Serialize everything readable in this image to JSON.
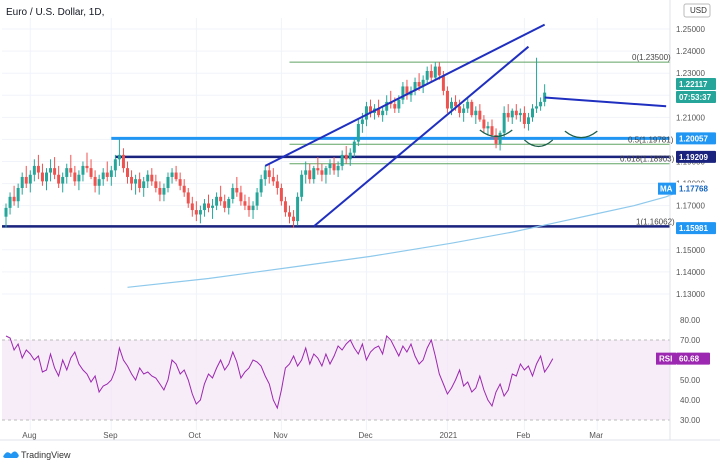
{
  "title": "Euro / U.S. Dollar, 1D,",
  "currency": "USD",
  "branding": "TradingView",
  "colors": {
    "up": "#26a69a",
    "down": "#ef5350",
    "ma": "#8ec9ec",
    "rsi": "#9c27b0",
    "trend": "#1f2fbf",
    "support_light": "#2196f3",
    "support_dark": "#1a237e",
    "fib": "#388e3c",
    "neckline": "#1a3a8f"
  },
  "price_axis": {
    "ticks": [
      "1.25000",
      "1.24000",
      "1.23000",
      "1.22000",
      "1.21000",
      "1.20000",
      "1.19000",
      "1.18000",
      "1.17000",
      "1.16000",
      "1.15000",
      "1.14000",
      "1.13000"
    ]
  },
  "rsi_axis": {
    "ticks": [
      "80.00",
      "70.00",
      "60.00",
      "50.00",
      "40.00",
      "30.00"
    ]
  },
  "months": [
    "Aug",
    "Sep",
    "Oct",
    "Nov",
    "Dec",
    "2021",
    "Feb",
    "Mar"
  ],
  "badges": {
    "last_price": "1.22117",
    "countdown": "07:53:37",
    "level1": "1.20057",
    "level2": "1.19209",
    "ma_label": "MA",
    "ma_value": "1.17768",
    "level3": "1.15981",
    "rsi_label": "RSI",
    "rsi_value": "60.68"
  },
  "fib_labels": {
    "f0": "0(1.23500)",
    "f05": "0.5(1.19781)",
    "f618": "0.618(1.18903)",
    "f1": "1(1.16062)"
  },
  "chart_data": {
    "type": "candlestick",
    "title": "Euro / U.S. Dollar, 1D,",
    "ylim": [
      1.125,
      1.255
    ],
    "candles": [
      [
        1.165,
        1.171,
        1.16,
        1.169
      ],
      [
        1.169,
        1.176,
        1.166,
        1.174
      ],
      [
        1.174,
        1.179,
        1.17,
        1.172
      ],
      [
        1.172,
        1.18,
        1.169,
        1.178
      ],
      [
        1.178,
        1.185,
        1.175,
        1.183
      ],
      [
        1.183,
        1.188,
        1.178,
        1.18
      ],
      [
        1.18,
        1.186,
        1.176,
        1.184
      ],
      [
        1.184,
        1.191,
        1.181,
        1.188
      ],
      [
        1.188,
        1.193,
        1.182,
        1.185
      ],
      [
        1.185,
        1.189,
        1.179,
        1.181
      ],
      [
        1.181,
        1.187,
        1.177,
        1.185
      ],
      [
        1.185,
        1.191,
        1.181,
        1.187
      ],
      [
        1.187,
        1.192,
        1.182,
        1.184
      ],
      [
        1.184,
        1.188,
        1.178,
        1.18
      ],
      [
        1.18,
        1.185,
        1.176,
        1.183
      ],
      [
        1.183,
        1.189,
        1.18,
        1.187
      ],
      [
        1.187,
        1.193,
        1.183,
        1.185
      ],
      [
        1.185,
        1.188,
        1.179,
        1.181
      ],
      [
        1.181,
        1.186,
        1.177,
        1.184
      ],
      [
        1.184,
        1.19,
        1.181,
        1.188
      ],
      [
        1.188,
        1.194,
        1.185,
        1.187
      ],
      [
        1.187,
        1.191,
        1.182,
        1.183
      ],
      [
        1.183,
        1.186,
        1.176,
        1.179
      ],
      [
        1.179,
        1.184,
        1.175,
        1.182
      ],
      [
        1.182,
        1.187,
        1.179,
        1.185
      ],
      [
        1.185,
        1.19,
        1.181,
        1.183
      ],
      [
        1.183,
        1.188,
        1.179,
        1.186
      ],
      [
        1.186,
        1.193,
        1.183,
        1.191
      ],
      [
        1.191,
        1.2,
        1.188,
        1.193
      ],
      [
        1.193,
        1.196,
        1.185,
        1.187
      ],
      [
        1.187,
        1.19,
        1.18,
        1.183
      ],
      [
        1.183,
        1.186,
        1.177,
        1.18
      ],
      [
        1.18,
        1.184,
        1.175,
        1.182
      ],
      [
        1.182,
        1.185,
        1.176,
        1.178
      ],
      [
        1.178,
        1.183,
        1.174,
        1.181
      ],
      [
        1.181,
        1.186,
        1.178,
        1.184
      ],
      [
        1.184,
        1.187,
        1.179,
        1.181
      ],
      [
        1.181,
        1.184,
        1.176,
        1.178
      ],
      [
        1.178,
        1.181,
        1.172,
        1.175
      ],
      [
        1.175,
        1.18,
        1.172,
        1.178
      ],
      [
        1.178,
        1.185,
        1.176,
        1.183
      ],
      [
        1.183,
        1.187,
        1.18,
        1.185
      ],
      [
        1.185,
        1.188,
        1.181,
        1.182
      ],
      [
        1.182,
        1.185,
        1.177,
        1.179
      ],
      [
        1.179,
        1.182,
        1.174,
        1.176
      ],
      [
        1.176,
        1.178,
        1.169,
        1.171
      ],
      [
        1.171,
        1.174,
        1.165,
        1.168
      ],
      [
        1.168,
        1.172,
        1.163,
        1.166
      ],
      [
        1.166,
        1.17,
        1.162,
        1.168
      ],
      [
        1.168,
        1.173,
        1.165,
        1.171
      ],
      [
        1.171,
        1.175,
        1.167,
        1.169
      ],
      [
        1.169,
        1.173,
        1.164,
        1.17
      ],
      [
        1.17,
        1.176,
        1.168,
        1.174
      ],
      [
        1.174,
        1.179,
        1.17,
        1.172
      ],
      [
        1.172,
        1.175,
        1.167,
        1.169
      ],
      [
        1.169,
        1.174,
        1.166,
        1.173
      ],
      [
        1.173,
        1.18,
        1.171,
        1.178
      ],
      [
        1.178,
        1.183,
        1.174,
        1.176
      ],
      [
        1.176,
        1.179,
        1.17,
        1.172
      ],
      [
        1.172,
        1.175,
        1.168,
        1.17
      ],
      [
        1.17,
        1.174,
        1.165,
        1.168
      ],
      [
        1.168,
        1.172,
        1.164,
        1.17
      ],
      [
        1.17,
        1.178,
        1.168,
        1.176
      ],
      [
        1.176,
        1.184,
        1.174,
        1.182
      ],
      [
        1.182,
        1.188,
        1.179,
        1.186
      ],
      [
        1.186,
        1.189,
        1.18,
        1.183
      ],
      [
        1.183,
        1.187,
        1.179,
        1.181
      ],
      [
        1.181,
        1.184,
        1.175,
        1.178
      ],
      [
        1.178,
        1.18,
        1.17,
        1.172
      ],
      [
        1.172,
        1.174,
        1.165,
        1.167
      ],
      [
        1.167,
        1.17,
        1.162,
        1.165
      ],
      [
        1.165,
        1.168,
        1.16,
        1.163
      ],
      [
        1.163,
        1.176,
        1.161,
        1.174
      ],
      [
        1.174,
        1.186,
        1.172,
        1.184
      ],
      [
        1.184,
        1.19,
        1.18,
        1.186
      ],
      [
        1.186,
        1.189,
        1.18,
        1.182
      ],
      [
        1.182,
        1.188,
        1.18,
        1.187
      ],
      [
        1.187,
        1.192,
        1.184,
        1.186
      ],
      [
        1.186,
        1.189,
        1.181,
        1.184
      ],
      [
        1.184,
        1.188,
        1.18,
        1.187
      ],
      [
        1.187,
        1.191,
        1.184,
        1.189
      ],
      [
        1.189,
        1.192,
        1.184,
        1.186
      ],
      [
        1.186,
        1.19,
        1.183,
        1.188
      ],
      [
        1.188,
        1.195,
        1.186,
        1.193
      ],
      [
        1.193,
        1.197,
        1.189,
        1.191
      ],
      [
        1.191,
        1.196,
        1.188,
        1.194
      ],
      [
        1.194,
        1.201,
        1.192,
        1.199
      ],
      [
        1.199,
        1.209,
        1.197,
        1.207
      ],
      [
        1.207,
        1.212,
        1.203,
        1.209
      ],
      [
        1.209,
        1.217,
        1.206,
        1.215
      ],
      [
        1.215,
        1.218,
        1.21,
        1.212
      ],
      [
        1.212,
        1.216,
        1.209,
        1.214
      ],
      [
        1.214,
        1.218,
        1.21,
        1.211
      ],
      [
        1.211,
        1.215,
        1.208,
        1.213
      ],
      [
        1.213,
        1.22,
        1.211,
        1.217
      ],
      [
        1.217,
        1.222,
        1.214,
        1.216
      ],
      [
        1.216,
        1.219,
        1.212,
        1.214
      ],
      [
        1.214,
        1.22,
        1.212,
        1.218
      ],
      [
        1.218,
        1.226,
        1.216,
        1.224
      ],
      [
        1.224,
        1.227,
        1.218,
        1.22
      ],
      [
        1.22,
        1.224,
        1.217,
        1.222
      ],
      [
        1.222,
        1.228,
        1.22,
        1.226
      ],
      [
        1.226,
        1.23,
        1.222,
        1.224
      ],
      [
        1.224,
        1.229,
        1.221,
        1.227
      ],
      [
        1.227,
        1.233,
        1.225,
        1.231
      ],
      [
        1.231,
        1.234,
        1.226,
        1.228
      ],
      [
        1.228,
        1.235,
        1.227,
        1.233
      ],
      [
        1.233,
        1.235,
        1.227,
        1.229
      ],
      [
        1.229,
        1.231,
        1.22,
        1.222
      ],
      [
        1.222,
        1.224,
        1.212,
        1.214
      ],
      [
        1.214,
        1.219,
        1.211,
        1.217
      ],
      [
        1.217,
        1.22,
        1.213,
        1.215
      ],
      [
        1.215,
        1.218,
        1.21,
        1.212
      ],
      [
        1.212,
        1.216,
        1.208,
        1.214
      ],
      [
        1.214,
        1.219,
        1.212,
        1.217
      ],
      [
        1.217,
        1.218,
        1.21,
        1.211
      ],
      [
        1.211,
        1.215,
        1.207,
        1.213
      ],
      [
        1.213,
        1.216,
        1.208,
        1.209
      ],
      [
        1.209,
        1.211,
        1.203,
        1.205
      ],
      [
        1.205,
        1.208,
        1.202,
        1.206
      ],
      [
        1.206,
        1.209,
        1.2,
        1.202
      ],
      [
        1.202,
        1.205,
        1.196,
        1.198
      ],
      [
        1.198,
        1.204,
        1.195,
        1.203
      ],
      [
        1.203,
        1.215,
        1.201,
        1.212
      ],
      [
        1.212,
        1.216,
        1.208,
        1.21
      ],
      [
        1.21,
        1.214,
        1.207,
        1.213
      ],
      [
        1.213,
        1.216,
        1.209,
        1.211
      ],
      [
        1.211,
        1.214,
        1.208,
        1.212
      ],
      [
        1.212,
        1.215,
        1.205,
        1.207
      ],
      [
        1.207,
        1.212,
        1.204,
        1.21
      ],
      [
        1.21,
        1.216,
        1.208,
        1.214
      ],
      [
        1.214,
        1.237,
        1.212,
        1.215
      ],
      [
        1.215,
        1.219,
        1.213,
        1.217
      ],
      [
        1.217,
        1.225,
        1.215,
        1.2212
      ]
    ],
    "ma": [
      [
        0,
        1.133
      ],
      [
        20,
        1.137
      ],
      [
        40,
        1.142
      ],
      [
        60,
        1.147
      ],
      [
        80,
        1.153
      ],
      [
        95,
        1.158
      ],
      [
        105,
        1.162
      ],
      [
        115,
        1.166
      ],
      [
        125,
        1.17
      ],
      [
        133,
        1.174
      ],
      [
        138,
        1.1777
      ]
    ],
    "ma_start_index": 30,
    "rsi": [
      72,
      71,
      65,
      68,
      61,
      65,
      63,
      60,
      62,
      54,
      55,
      63,
      56,
      52,
      60,
      55,
      61,
      64,
      58,
      55,
      53,
      49,
      52,
      44,
      47,
      48,
      50,
      55,
      66,
      60,
      57,
      53,
      50,
      56,
      53,
      54,
      52,
      51,
      48,
      45,
      50,
      60,
      58,
      53,
      55,
      50,
      43,
      38,
      40,
      48,
      53,
      51,
      56,
      60,
      55,
      58,
      64,
      59,
      51,
      54,
      56,
      60,
      59,
      57,
      52,
      48,
      40,
      36,
      45,
      56,
      58,
      62,
      57,
      60,
      66,
      58,
      63,
      61,
      57,
      63,
      58,
      62,
      67,
      65,
      68,
      70,
      66,
      63,
      68,
      60,
      64,
      66,
      67,
      63,
      72,
      70,
      66,
      62,
      67,
      64,
      68,
      62,
      58,
      60,
      66,
      70,
      62,
      53,
      48,
      43,
      46,
      50,
      55,
      47,
      49,
      44,
      46,
      52,
      45,
      40,
      37,
      44,
      48,
      42,
      45,
      53,
      52,
      58,
      55,
      57,
      52,
      58,
      62,
      54,
      57,
      60.68
    ],
    "rsi_ylim": [
      25,
      85
    ],
    "rsi_levels": [
      70,
      30
    ],
    "hlines": [
      {
        "value": 1.235,
        "color": "fib"
      },
      {
        "value": 1.2005,
        "color": "support_light"
      },
      {
        "value": 1.1978,
        "color": "fib"
      },
      {
        "value": 1.1921,
        "color": "support_dark"
      },
      {
        "value": 1.189,
        "color": "fib"
      },
      {
        "value": 1.1606,
        "color": "support_dark"
      }
    ],
    "trendlines": [
      {
        "from": [
          76,
          1.1606
        ],
        "to": [
          129,
          1.242
        ]
      },
      {
        "from": [
          64,
          1.188
        ],
        "to": [
          133,
          1.252
        ]
      },
      {
        "from": [
          133,
          1.219
        ],
        "to": [
          163,
          1.215
        ]
      }
    ]
  }
}
